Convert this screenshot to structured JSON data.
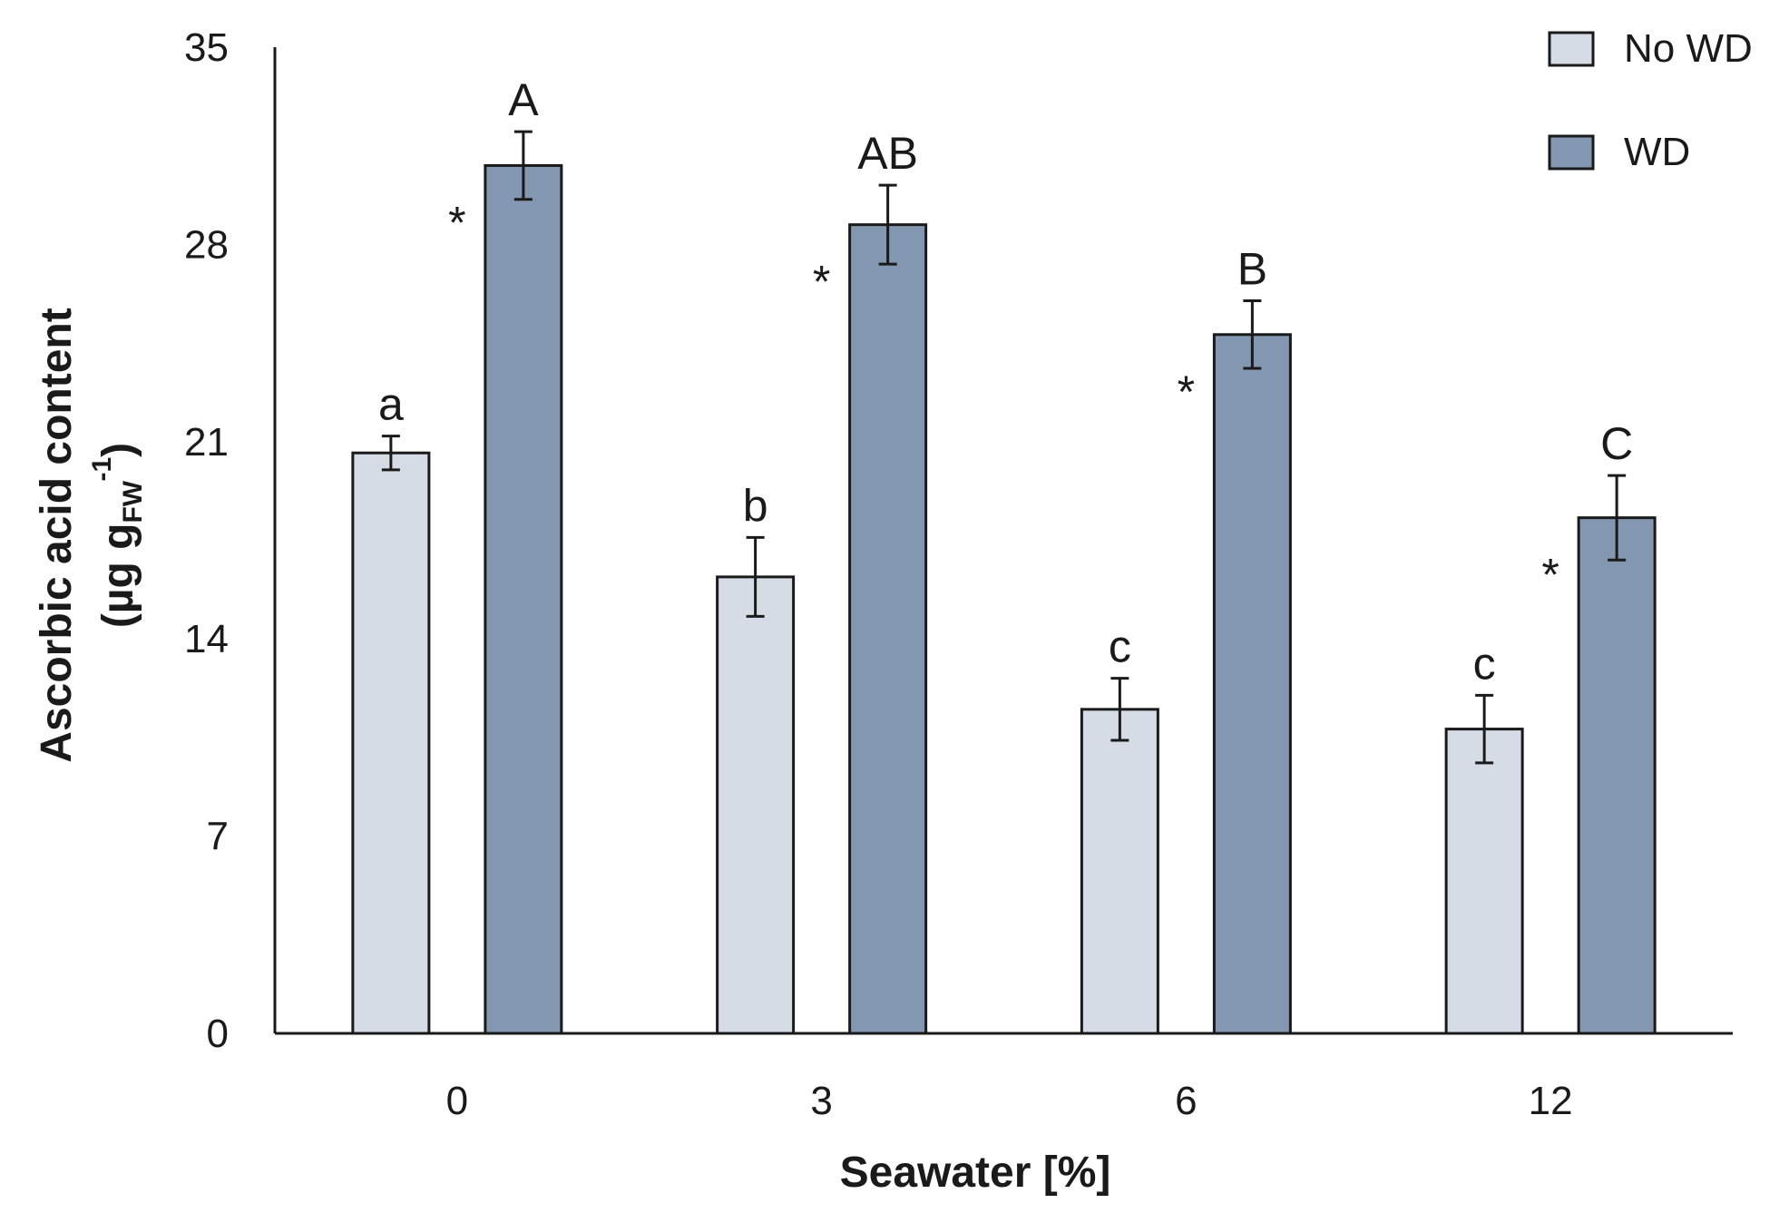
{
  "chart_data": {
    "type": "bar",
    "xlabel": "Seawater [%]",
    "ylabel": {
      "line1": "Ascorbic acid content",
      "line2_prefix": "(µg  g",
      "line2_sub": "FW",
      "line2_sup": "-1",
      "line2_suffix": ")"
    },
    "ylim": [
      0,
      35
    ],
    "yticks": [
      0,
      7,
      14,
      21,
      28,
      35
    ],
    "categories": [
      "0",
      "3",
      "6",
      "12"
    ],
    "legend_position": "top-right",
    "grid": false,
    "series": [
      {
        "name": "No WD",
        "color": "#d6dce6",
        "values": [
          20.6,
          16.2,
          11.5,
          10.8
        ],
        "errors": [
          0.6,
          1.4,
          1.1,
          1.2
        ],
        "letters": [
          "a",
          "b",
          "c",
          "c"
        ]
      },
      {
        "name": "WD",
        "color": "#8497b0",
        "values": [
          30.8,
          28.7,
          24.8,
          18.3
        ],
        "errors": [
          1.2,
          1.4,
          1.2,
          1.5
        ],
        "letters": [
          "A",
          "AB",
          "B",
          "C"
        ]
      }
    ],
    "significance_marker": "*",
    "significant": [
      true,
      true,
      true,
      true
    ]
  }
}
